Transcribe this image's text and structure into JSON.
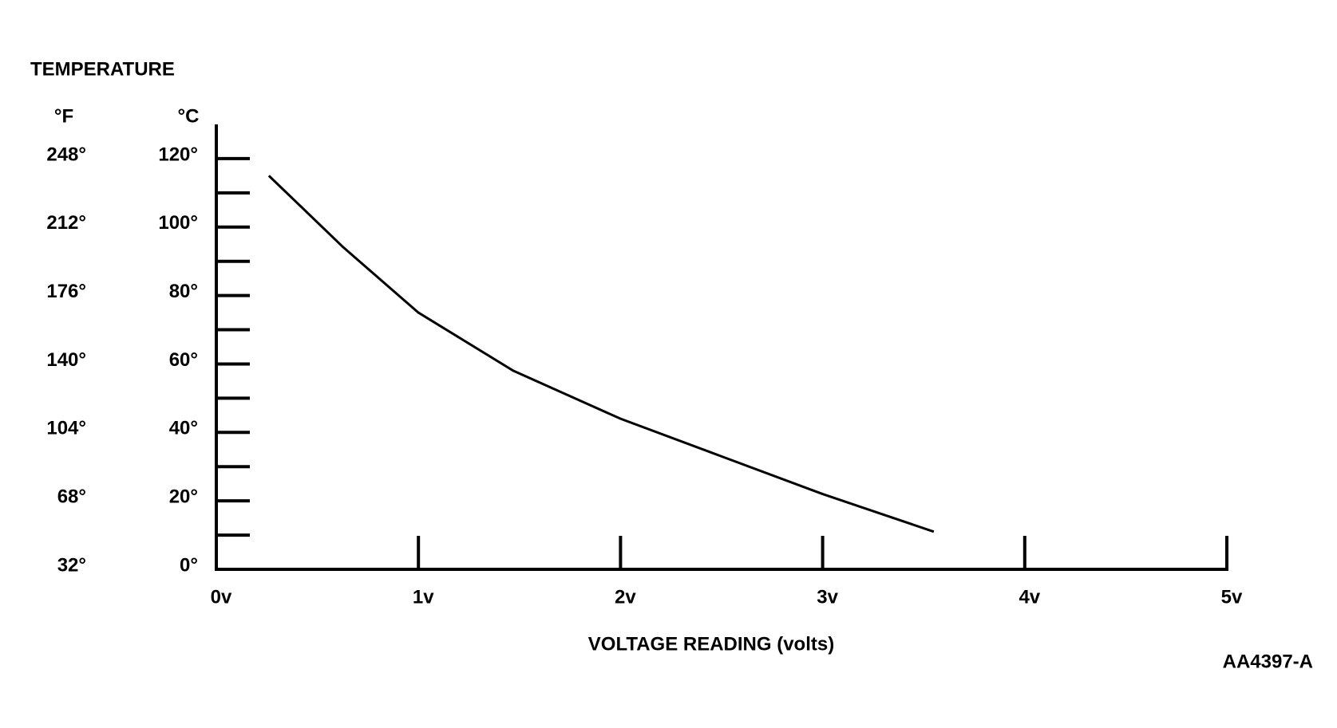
{
  "chart_data": {
    "type": "line",
    "title": "TEMPERATURE",
    "y_unit": "°C",
    "y2_unit": "°F",
    "x_label": "VOLTAGE READING (volts)",
    "figure_code": "AA4397-A",
    "x": [
      0.26,
      0.63,
      1.0,
      1.47,
      2.0,
      2.5,
      3.0,
      3.55
    ],
    "series": [
      {
        "name": "Temperature",
        "color": "#000000",
        "values": [
          115,
          94,
          75,
          58,
          44,
          33,
          22,
          11
        ]
      }
    ],
    "xlim": [
      0,
      5
    ],
    "xticks": [
      {
        "value": 0,
        "label": "0v"
      },
      {
        "value": 1,
        "label": "1v"
      },
      {
        "value": 2,
        "label": "2v"
      },
      {
        "value": 3,
        "label": "3v"
      },
      {
        "value": 4,
        "label": "4v"
      },
      {
        "value": 5,
        "label": "5v"
      }
    ],
    "ylim": [
      0,
      130
    ],
    "yticks": [
      {
        "value": 0,
        "label": "0°"
      },
      {
        "value": 20,
        "label": "20°"
      },
      {
        "value": 40,
        "label": "40°"
      },
      {
        "value": 60,
        "label": "60°"
      },
      {
        "value": 80,
        "label": "80°"
      },
      {
        "value": 100,
        "label": "100°"
      },
      {
        "value": 120,
        "label": "120°"
      }
    ],
    "minor_yticks": [
      10,
      30,
      50,
      70,
      90,
      110
    ],
    "y2lim": [
      32,
      266
    ],
    "y2ticks": [
      {
        "value": 32,
        "label": "32°"
      },
      {
        "value": 68,
        "label": "68°"
      },
      {
        "value": 104,
        "label": "104°"
      },
      {
        "value": 140,
        "label": "140°"
      },
      {
        "value": 176,
        "label": "176°"
      },
      {
        "value": 212,
        "label": "212°"
      },
      {
        "value": 248,
        "label": "248°"
      }
    ]
  }
}
